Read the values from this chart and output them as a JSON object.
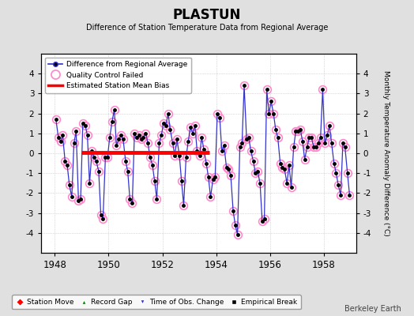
{
  "title": "PLASTUN",
  "subtitle": "Difference of Station Temperature Data from Regional Average",
  "ylabel": "Monthly Temperature Anomaly Difference (°C)",
  "xlabel_years": [
    1948,
    1950,
    1952,
    1954,
    1956,
    1958
  ],
  "xlim": [
    1947.5,
    1959.2
  ],
  "ylim": [
    -5,
    5
  ],
  "yticks": [
    -4,
    -3,
    -2,
    -1,
    0,
    1,
    2,
    3,
    4
  ],
  "background_color": "#e0e0e0",
  "plot_bg_color": "#ffffff",
  "grid_color": "#bbbbbb",
  "line_color": "#3333cc",
  "dot_color": "#000000",
  "qc_color": "#ff88cc",
  "bias_color": "#ff0000",
  "bias_x_start": 1949.0,
  "bias_x_end": 1953.75,
  "bias_y": 0.05,
  "watermark": "Berkeley Earth",
  "data_x": [
    1948.04,
    1948.13,
    1948.21,
    1948.29,
    1948.38,
    1948.46,
    1948.54,
    1948.63,
    1948.71,
    1948.79,
    1948.88,
    1948.96,
    1949.04,
    1949.13,
    1949.21,
    1949.29,
    1949.38,
    1949.46,
    1949.54,
    1949.63,
    1949.71,
    1949.79,
    1949.88,
    1949.96,
    1950.04,
    1950.13,
    1950.21,
    1950.29,
    1950.38,
    1950.46,
    1950.54,
    1950.63,
    1950.71,
    1950.79,
    1950.88,
    1950.96,
    1951.04,
    1951.13,
    1951.21,
    1951.29,
    1951.38,
    1951.46,
    1951.54,
    1951.63,
    1951.71,
    1951.79,
    1951.88,
    1951.96,
    1952.04,
    1952.13,
    1952.21,
    1952.29,
    1952.38,
    1952.46,
    1952.54,
    1952.63,
    1952.71,
    1952.79,
    1952.88,
    1952.96,
    1953.04,
    1953.13,
    1953.21,
    1953.29,
    1953.38,
    1953.46,
    1953.54,
    1953.63,
    1953.71,
    1953.79,
    1953.88,
    1953.96,
    1954.04,
    1954.13,
    1954.21,
    1954.29,
    1954.38,
    1954.46,
    1954.54,
    1954.63,
    1954.71,
    1954.79,
    1954.88,
    1954.96,
    1955.04,
    1955.13,
    1955.21,
    1955.29,
    1955.38,
    1955.46,
    1955.54,
    1955.63,
    1955.71,
    1955.79,
    1955.88,
    1955.96,
    1956.04,
    1956.13,
    1956.21,
    1956.29,
    1956.38,
    1956.46,
    1956.54,
    1956.63,
    1956.71,
    1956.79,
    1956.88,
    1956.96,
    1957.04,
    1957.13,
    1957.21,
    1957.29,
    1957.38,
    1957.46,
    1957.54,
    1957.63,
    1957.71,
    1957.79,
    1957.88,
    1957.96,
    1958.04,
    1958.13,
    1958.21,
    1958.29,
    1958.38,
    1958.46,
    1958.54,
    1958.63,
    1958.71,
    1958.79,
    1958.88,
    1958.96
  ],
  "data_y": [
    1.7,
    0.8,
    0.6,
    0.9,
    -0.4,
    -0.6,
    -1.6,
    -2.2,
    0.5,
    1.1,
    -2.4,
    -2.3,
    1.5,
    1.4,
    0.9,
    -1.5,
    0.1,
    -0.2,
    -0.4,
    -0.9,
    -3.1,
    -3.3,
    -0.2,
    -0.2,
    0.8,
    1.6,
    2.2,
    0.4,
    0.7,
    0.9,
    0.7,
    -0.4,
    -0.9,
    -2.3,
    -2.5,
    1.0,
    0.8,
    0.9,
    0.7,
    0.8,
    1.0,
    0.5,
    -0.2,
    -0.6,
    -1.4,
    -2.3,
    0.5,
    0.9,
    1.5,
    1.4,
    2.0,
    1.2,
    0.5,
    -0.1,
    0.7,
    -0.1,
    -1.4,
    -2.6,
    -0.2,
    0.6,
    1.3,
    1.0,
    1.4,
    0.1,
    -0.1,
    0.8,
    0.2,
    -0.5,
    -1.2,
    -2.2,
    -1.3,
    -1.2,
    2.0,
    1.8,
    0.1,
    0.4,
    -0.7,
    -0.8,
    -1.1,
    -2.9,
    -3.6,
    -4.1,
    0.3,
    0.5,
    3.4,
    0.7,
    0.8,
    0.1,
    -0.4,
    -1.0,
    -0.9,
    -1.5,
    -3.4,
    -3.3,
    3.2,
    2.0,
    2.6,
    2.0,
    1.2,
    0.8,
    -0.5,
    -0.7,
    -0.8,
    -1.5,
    -0.6,
    -1.7,
    0.3,
    1.1,
    1.1,
    1.2,
    0.6,
    -0.3,
    0.3,
    0.8,
    0.8,
    0.3,
    0.3,
    0.5,
    0.8,
    3.2,
    0.5,
    0.9,
    1.4,
    0.5,
    -0.5,
    -1.0,
    -1.6,
    -2.1,
    0.5,
    0.3,
    -1.0,
    -2.1
  ]
}
